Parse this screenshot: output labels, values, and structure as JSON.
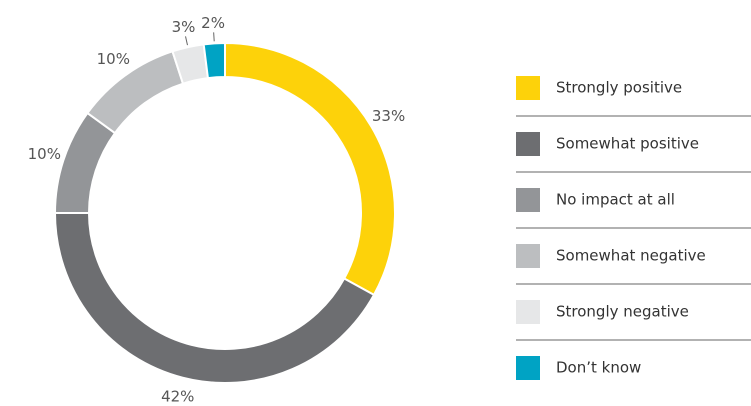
{
  "chart_data": {
    "type": "pie",
    "categories": [
      "Strongly positive",
      "Somewhat positive",
      "No impact at all",
      "Somewhat negative",
      "Strongly negative",
      "Don’t know"
    ],
    "values": [
      33,
      42,
      10,
      10,
      3,
      2
    ],
    "value_labels": [
      "33%",
      "42%",
      "10%",
      "10%",
      "3%",
      "2%"
    ],
    "colors": [
      "#fdd20a",
      "#6d6e71",
      "#939598",
      "#bcbec0",
      "#e6e7e8",
      "#00a3c4"
    ],
    "legend": "right"
  }
}
